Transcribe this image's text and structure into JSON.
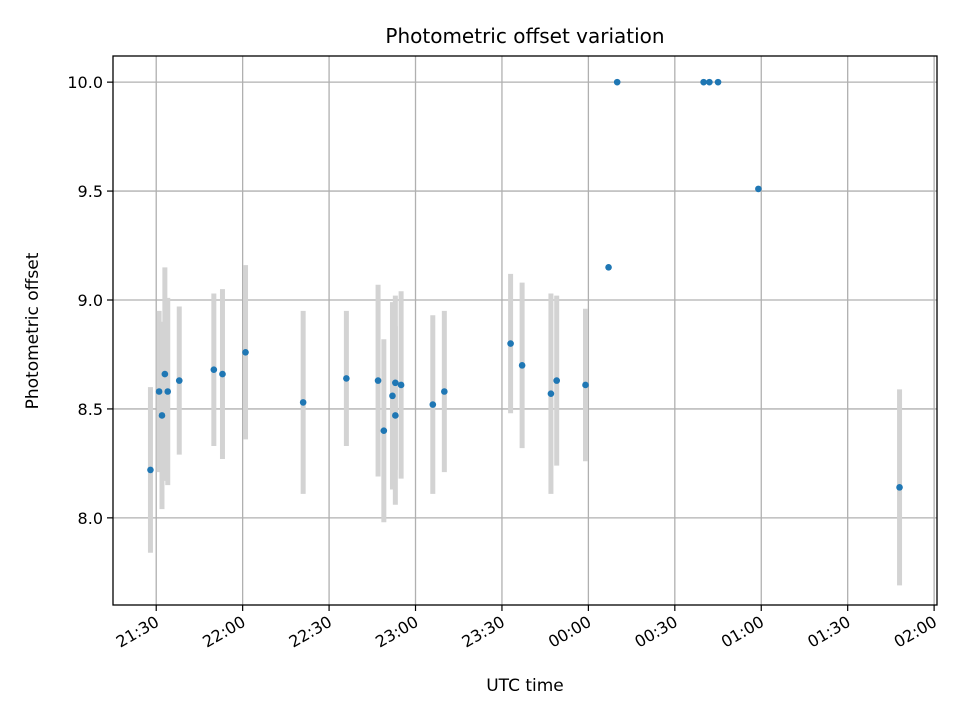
{
  "chart_data": {
    "type": "scatter",
    "title": "Photometric offset variation",
    "xlabel": "UTC time",
    "ylabel": "Photometric offset",
    "x_ticks": [
      "21:30",
      "22:00",
      "22:30",
      "23:00",
      "23:30",
      "00:00",
      "00:30",
      "01:00",
      "01:30",
      "02:00"
    ],
    "y_ticks": [
      "8.0",
      "8.5",
      "9.0",
      "9.5",
      "10.0"
    ],
    "xlim": [
      "21:15",
      "02:01"
    ],
    "ylim": [
      7.6,
      10.12
    ],
    "grid": true,
    "colors": {
      "points": "#1f77b4",
      "error_bars": "#d3d3d3",
      "grid": "#b0b0b0"
    },
    "points": [
      {
        "t": "21:28",
        "y": 8.22,
        "err": 0.38
      },
      {
        "t": "21:31",
        "y": 8.58,
        "err": 0.37
      },
      {
        "t": "21:32",
        "y": 8.47,
        "err": 0.43
      },
      {
        "t": "21:33",
        "y": 8.66,
        "err": 0.49
      },
      {
        "t": "21:34",
        "y": 8.58,
        "err": 0.43
      },
      {
        "t": "21:38",
        "y": 8.63,
        "err": 0.34
      },
      {
        "t": "21:50",
        "y": 8.68,
        "err": 0.35
      },
      {
        "t": "21:53",
        "y": 8.66,
        "err": 0.39
      },
      {
        "t": "22:01",
        "y": 8.76,
        "err": 0.4
      },
      {
        "t": "22:21",
        "y": 8.53,
        "err": 0.42
      },
      {
        "t": "22:36",
        "y": 8.64,
        "err": 0.31
      },
      {
        "t": "22:47",
        "y": 8.63,
        "err": 0.44
      },
      {
        "t": "22:49",
        "y": 8.4,
        "err": 0.42
      },
      {
        "t": "22:52",
        "y": 8.56,
        "err": 0.43
      },
      {
        "t": "22:53",
        "y": 8.47,
        "err": 0.41
      },
      {
        "t": "22:53",
        "y": 8.62,
        "err": 0.4
      },
      {
        "t": "22:55",
        "y": 8.61,
        "err": 0.43
      },
      {
        "t": "23:06",
        "y": 8.52,
        "err": 0.41
      },
      {
        "t": "23:10",
        "y": 8.58,
        "err": 0.37
      },
      {
        "t": "23:33",
        "y": 8.8,
        "err": 0.32
      },
      {
        "t": "23:37",
        "y": 8.7,
        "err": 0.38
      },
      {
        "t": "23:47",
        "y": 8.57,
        "err": 0.46
      },
      {
        "t": "23:49",
        "y": 8.63,
        "err": 0.39
      },
      {
        "t": "23:59",
        "y": 8.61,
        "err": 0.35
      },
      {
        "t": "00:07",
        "y": 9.15
      },
      {
        "t": "00:10",
        "y": 10.0
      },
      {
        "t": "00:40",
        "y": 10.0
      },
      {
        "t": "00:42",
        "y": 10.0
      },
      {
        "t": "00:45",
        "y": 10.0
      },
      {
        "t": "00:59",
        "y": 9.51
      },
      {
        "t": "01:48",
        "y": 8.14,
        "err": 0.45
      }
    ]
  }
}
